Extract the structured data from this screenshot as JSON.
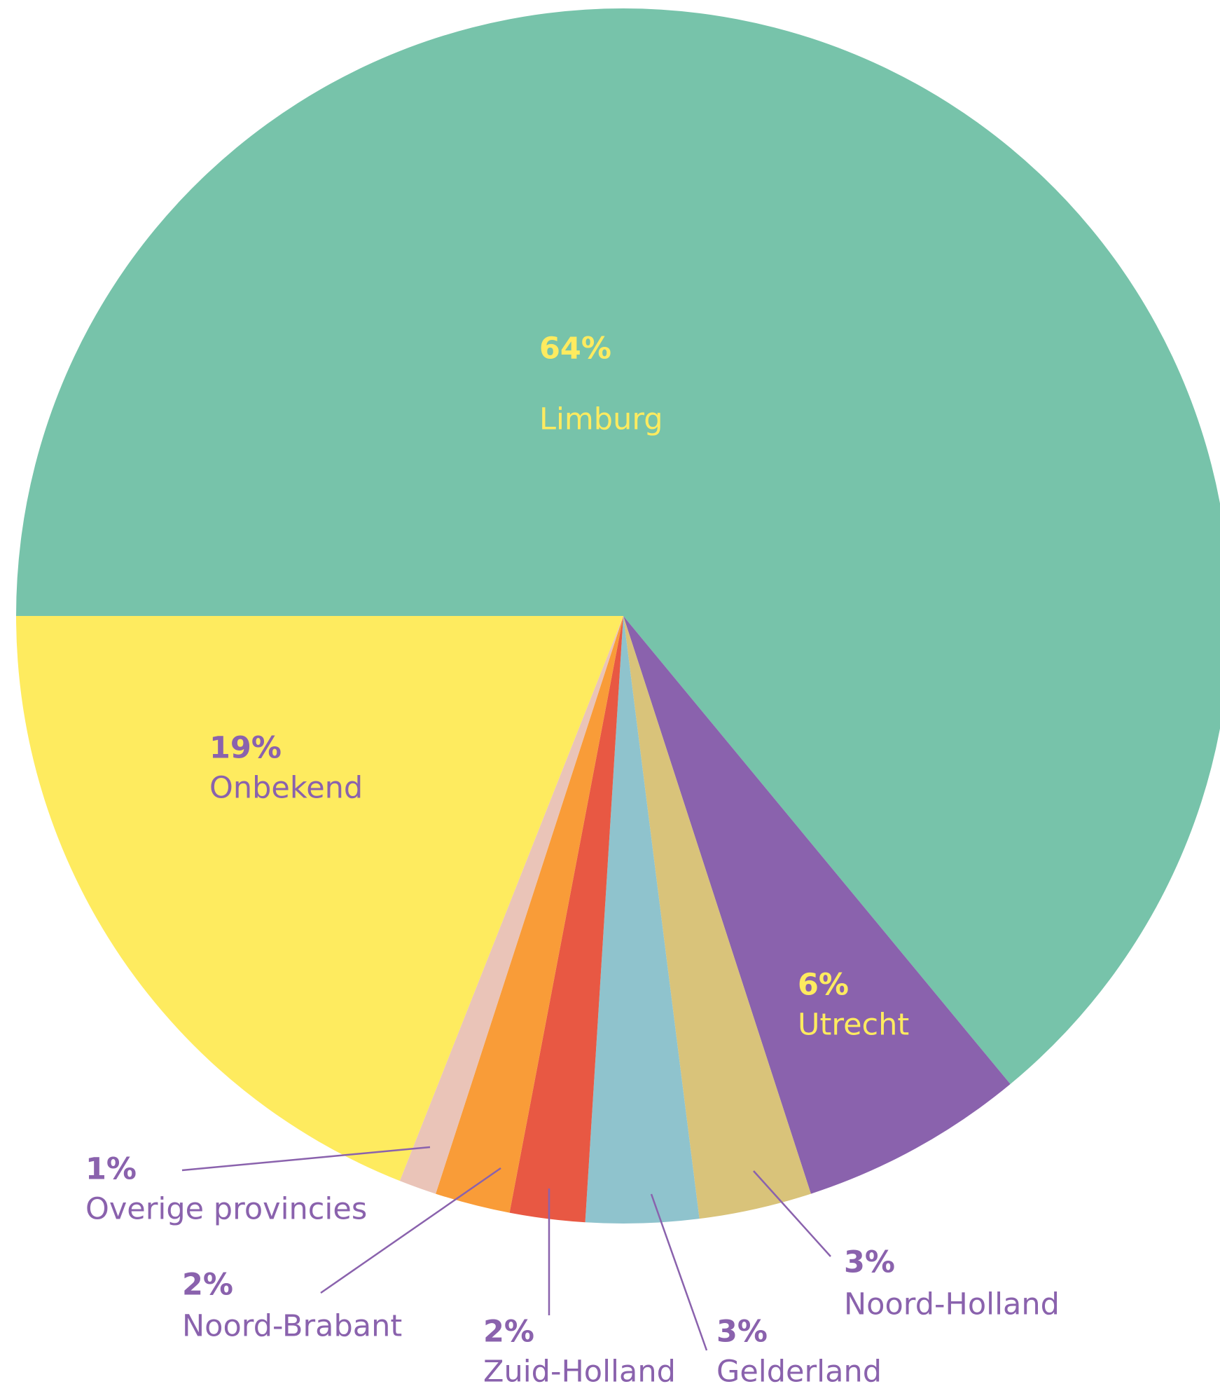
{
  "chart_data": {
    "type": "pie",
    "categories": [
      "Limburg",
      "Utrecht",
      "Noord-Holland",
      "Gelderland",
      "Zuid-Holland",
      "Noord-Brabant",
      "Overige provincies",
      "Onbekend"
    ],
    "values": [
      64,
      6,
      3,
      3,
      2,
      2,
      1,
      19
    ],
    "value_labels": [
      "64%",
      "6%",
      "3%",
      "3%",
      "2%",
      "2%",
      "1%",
      "19%"
    ],
    "colors": [
      "#77c3aa",
      "#8a62ad",
      "#d9c37a",
      "#8fc3cd",
      "#e85843",
      "#f99c38",
      "#eac4b8",
      "#feeb5f"
    ]
  }
}
